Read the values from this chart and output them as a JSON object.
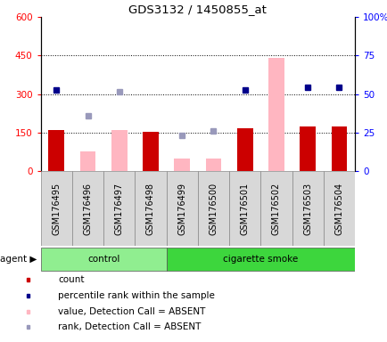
{
  "title": "GDS3132 / 1450855_at",
  "samples": [
    "GSM176495",
    "GSM176496",
    "GSM176497",
    "GSM176498",
    "GSM176499",
    "GSM176500",
    "GSM176501",
    "GSM176502",
    "GSM176503",
    "GSM176504"
  ],
  "groups": [
    "control",
    "control",
    "control",
    "control",
    "cigarette smoke",
    "cigarette smoke",
    "cigarette smoke",
    "cigarette smoke",
    "cigarette smoke",
    "cigarette smoke"
  ],
  "count": [
    160,
    null,
    null,
    152,
    null,
    null,
    165,
    null,
    173,
    175
  ],
  "percentile_rank_left": [
    315,
    null,
    null,
    null,
    null,
    null,
    315,
    null,
    325,
    325
  ],
  "value_absent": [
    null,
    78,
    160,
    null,
    50,
    50,
    null,
    440,
    null,
    null
  ],
  "rank_absent_left": [
    null,
    215,
    310,
    null,
    138,
    155,
    null,
    null,
    null,
    null
  ],
  "ylim_left": [
    0,
    600
  ],
  "ylim_right": [
    0,
    100
  ],
  "left_ticks": [
    0,
    150,
    300,
    450,
    600
  ],
  "right_ticks": [
    0,
    25,
    50,
    75,
    100
  ],
  "left_tick_labels": [
    "0",
    "150",
    "300",
    "450",
    "600"
  ],
  "right_tick_labels": [
    "0",
    "25",
    "50",
    "75",
    "100%"
  ],
  "bar_color_count": "#CC0000",
  "bar_color_absent": "#FFB6C1",
  "dot_color_rank": "#00008B",
  "dot_color_rank_absent": "#9999BB",
  "hline_vals": [
    150,
    300,
    450
  ],
  "control_color": "#90EE90",
  "smoke_color": "#3DD63D",
  "legend_items": [
    {
      "color": "#CC0000",
      "label": "count",
      "marker": "square"
    },
    {
      "color": "#00008B",
      "label": "percentile rank within the sample",
      "marker": "square"
    },
    {
      "color": "#FFB6C1",
      "label": "value, Detection Call = ABSENT",
      "marker": "square"
    },
    {
      "color": "#9999BB",
      "label": "rank, Detection Call = ABSENT",
      "marker": "square"
    }
  ]
}
